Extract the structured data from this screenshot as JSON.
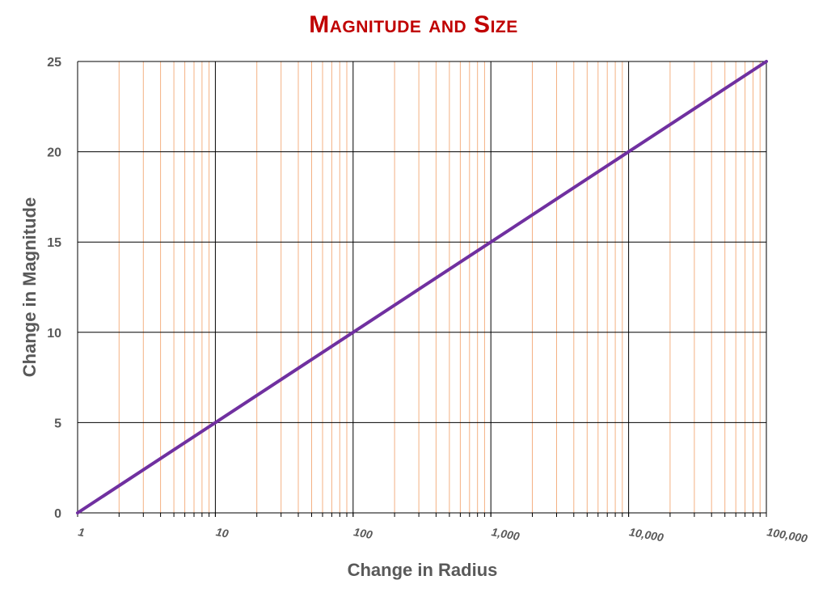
{
  "chart_data": {
    "type": "line",
    "title": "Magnitude and Size",
    "xlabel": "Change in Radius",
    "ylabel": "Change in Magnitude",
    "x_scale": "log",
    "xlim": [
      1,
      100000
    ],
    "ylim": [
      0,
      25
    ],
    "x_ticks": [
      1,
      10,
      100,
      1000,
      10000,
      100000
    ],
    "x_tick_labels": [
      "1",
      "10",
      "100",
      "1,000",
      "10,000",
      "100,000"
    ],
    "y_ticks": [
      0,
      5,
      10,
      15,
      20,
      25
    ],
    "y_tick_labels": [
      "0",
      "5",
      "10",
      "15",
      "20",
      "25"
    ],
    "grid": true,
    "minor_grid_color": "#f4b183",
    "major_grid_color": "#000000",
    "series": [
      {
        "color": "#7030a0",
        "x": [
          1,
          10,
          100,
          1000,
          10000,
          100000
        ],
        "y": [
          0,
          5,
          10,
          15,
          20,
          25
        ]
      }
    ]
  }
}
